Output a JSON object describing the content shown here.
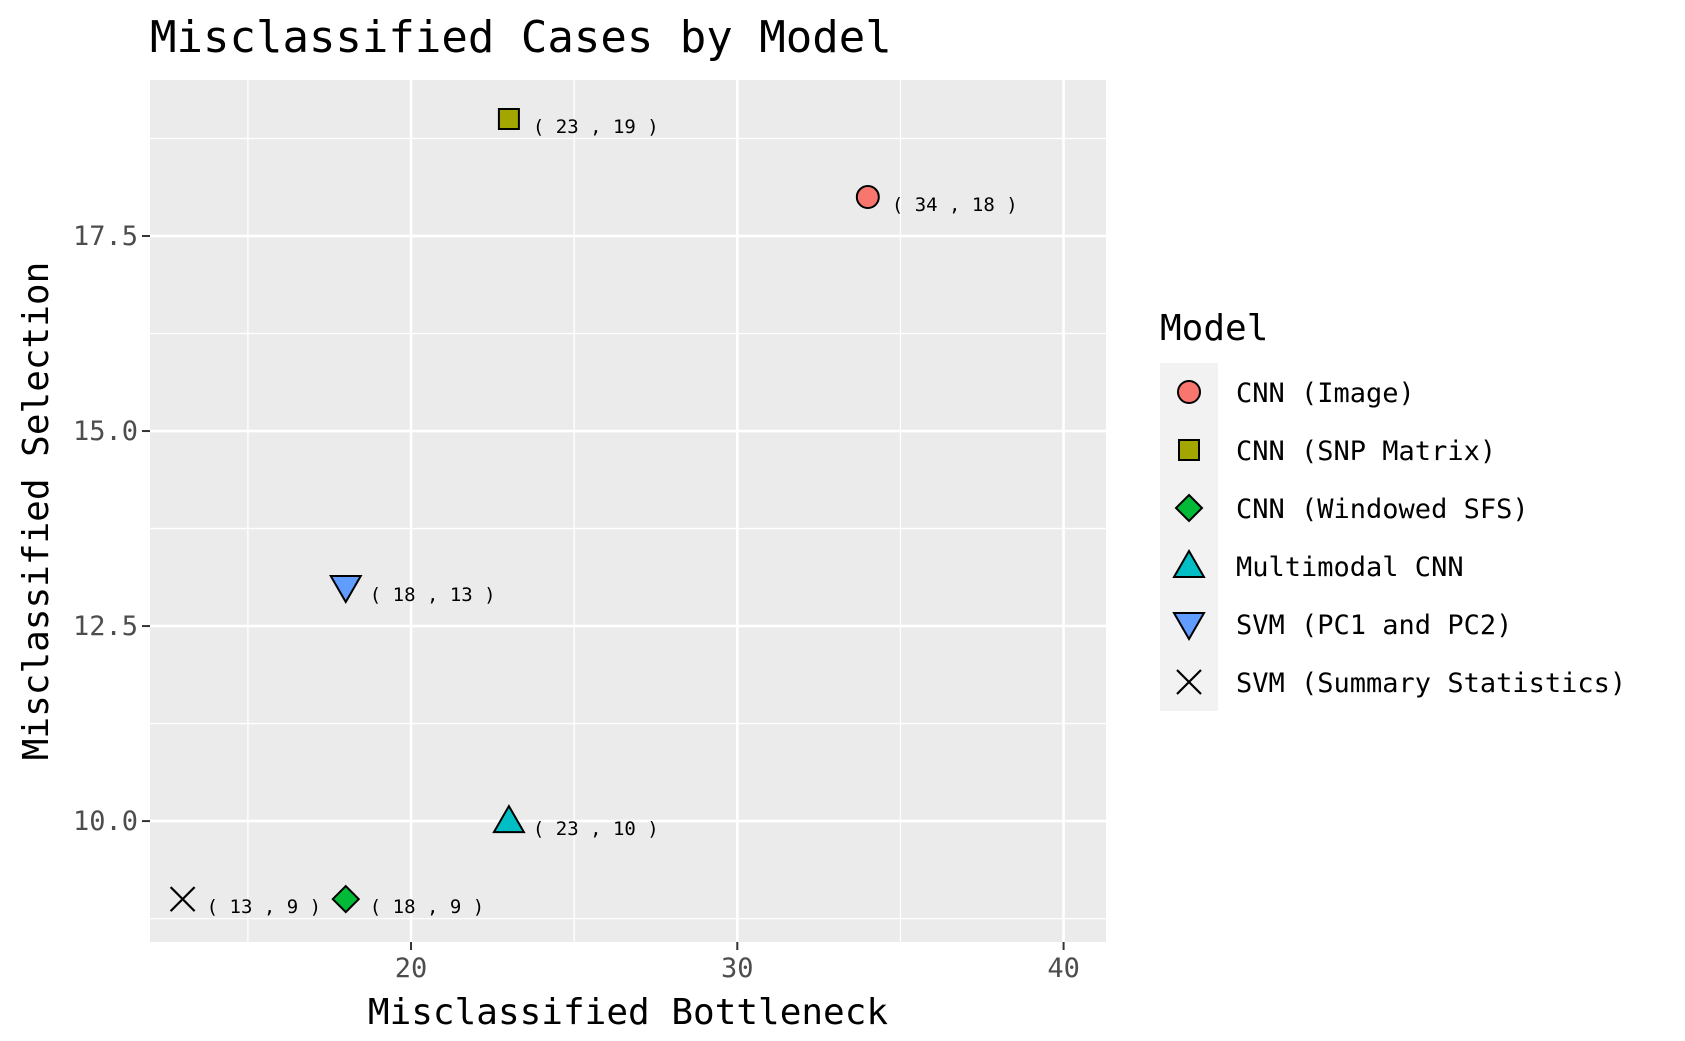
{
  "chart_data": {
    "type": "scatter",
    "title": "Misclassified Cases by Model",
    "xlabel": "Misclassified Bottleneck",
    "ylabel": "Misclassified Selection",
    "xlim": [
      12.0,
      41.3
    ],
    "ylim": [
      8.45,
      19.5
    ],
    "x_ticks": [
      20,
      30,
      40
    ],
    "x_tick_labels": [
      "20",
      "30",
      "40"
    ],
    "x_minor_ticks": [
      15,
      25,
      35
    ],
    "y_ticks": [
      10.0,
      12.5,
      15.0,
      17.5
    ],
    "y_tick_labels": [
      "10.0",
      "12.5",
      "15.0",
      "17.5"
    ],
    "y_minor_ticks": [
      8.75,
      11.25,
      13.75,
      16.25,
      18.75
    ],
    "grid": true,
    "legend_title": "Model",
    "legend_position": "right",
    "series": [
      {
        "name": "CNN (Image)",
        "shape": "circle",
        "color": "#F8766D",
        "x": 34,
        "y": 18,
        "label": "( 34 , 18 )"
      },
      {
        "name": "CNN (SNP Matrix)",
        "shape": "square",
        "color": "#A3A500",
        "x": 23,
        "y": 19,
        "label": "( 23 , 19 )"
      },
      {
        "name": "CNN (Windowed SFS)",
        "shape": "diamond",
        "color": "#00BA38",
        "x": 18,
        "y": 9,
        "label": "( 18 , 9 )"
      },
      {
        "name": "Multimodal CNN",
        "shape": "triangle-up",
        "color": "#00BFC4",
        "x": 23,
        "y": 10,
        "label": "( 23 , 10 )"
      },
      {
        "name": "SVM (PC1 and PC2)",
        "shape": "triangle-down",
        "color": "#619CFF",
        "x": 18,
        "y": 13,
        "label": "( 18 , 13 )"
      },
      {
        "name": "SVM (Summary Statistics)",
        "shape": "cross",
        "color": "#000000",
        "x": 13,
        "y": 9,
        "label": "( 13 , 9 )"
      }
    ]
  }
}
